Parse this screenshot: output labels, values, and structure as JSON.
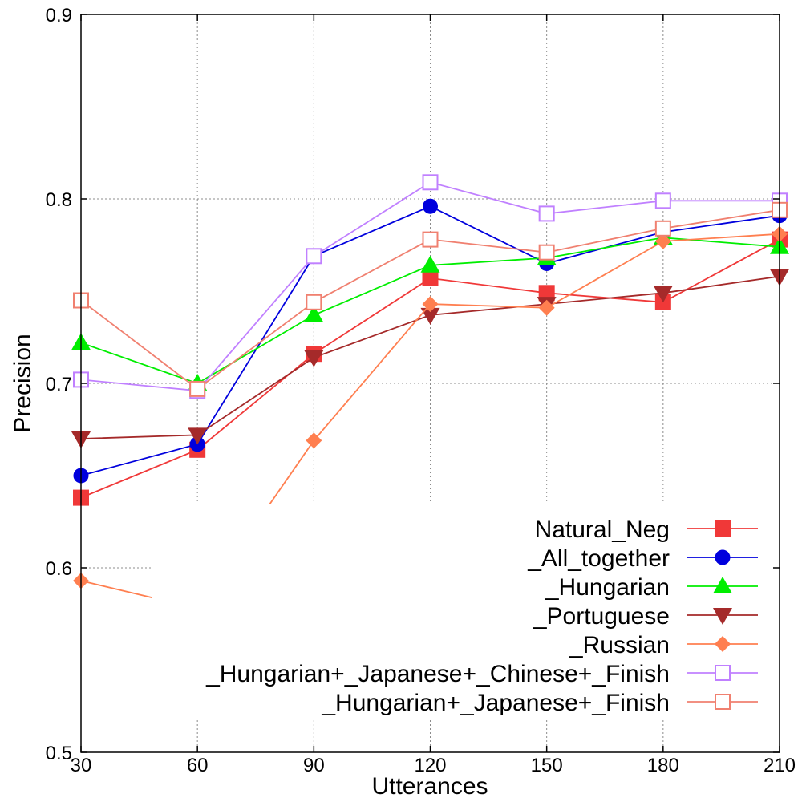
{
  "chart_data": {
    "type": "line",
    "title": "",
    "xlabel": "Utterances",
    "ylabel": "Precision",
    "x": [
      30,
      60,
      90,
      120,
      150,
      180,
      210
    ],
    "xlim": [
      30,
      210
    ],
    "ylim": [
      0.5,
      0.9
    ],
    "x_ticks": [
      "30",
      "60",
      "90",
      "120",
      "150",
      "180",
      "210"
    ],
    "y_ticks": [
      "0.5",
      "0.6",
      "0.7",
      "0.8",
      "0.9"
    ],
    "y_tick_values": [
      0.5,
      0.6,
      0.7,
      0.8,
      0.9
    ],
    "grid": true,
    "legend_position": "bottom-right",
    "series": [
      {
        "name": "Natural_Neg",
        "color": "#f03838",
        "marker": "square-filled",
        "values": [
          0.638,
          0.664,
          0.716,
          0.757,
          0.749,
          0.744,
          0.778
        ]
      },
      {
        "name": "_All_together",
        "color": "#0000dd",
        "marker": "circle-filled",
        "values": [
          0.65,
          0.667,
          0.769,
          0.796,
          0.765,
          0.782,
          0.791
        ]
      },
      {
        "name": "_Hungarian",
        "color": "#00ee00",
        "marker": "triangle-up-filled",
        "values": [
          0.722,
          0.7,
          0.737,
          0.764,
          0.768,
          0.779,
          0.774
        ]
      },
      {
        "name": "_Portuguese",
        "color": "#a52a2a",
        "marker": "triangle-down-filled",
        "values": [
          0.67,
          0.672,
          0.714,
          0.737,
          0.743,
          0.749,
          0.758
        ]
      },
      {
        "name": "_Russian",
        "color": "#ff7f50",
        "marker": "diamond-filled",
        "values": [
          0.593,
          0.578,
          0.669,
          0.743,
          0.741,
          0.777,
          0.781
        ]
      },
      {
        "name": "_Hungarian+_Japanese+_Chinese+_Finish",
        "color": "#c080ff",
        "marker": "square-open",
        "values": [
          0.702,
          0.696,
          0.769,
          0.809,
          0.792,
          0.799,
          0.799
        ]
      },
      {
        "name": "_Hungarian+_Japanese+_Finish",
        "color": "#f08070",
        "marker": "square-open",
        "values": [
          0.745,
          0.697,
          0.744,
          0.778,
          0.771,
          0.784,
          0.794
        ]
      }
    ]
  }
}
